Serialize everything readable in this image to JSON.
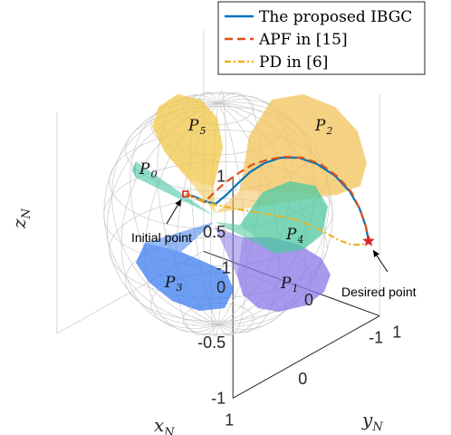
{
  "chart_data": {
    "type": "line",
    "view": "3d",
    "title": "",
    "xlabel": "x",
    "xlabel_subscript": "N",
    "ylabel": "y",
    "ylabel_subscript": "N",
    "zlabel": "z",
    "zlabel_subscript": "N",
    "x_ticks": [
      "1",
      "0",
      "-1"
    ],
    "y_ticks": [
      "-1",
      "0",
      "1"
    ],
    "z_ticks": [
      "1",
      "0.5",
      "0",
      "-0.5",
      "-1"
    ],
    "xlim": [
      -1,
      1
    ],
    "ylim": [
      -1,
      1
    ],
    "zlim": [
      -1,
      1
    ],
    "grid": true,
    "legend_position": "top-right",
    "series": [
      {
        "name": "The proposed IBGC",
        "color": "#0072BD",
        "dash": "solid"
      },
      {
        "name": "APF in [15]",
        "color": "#D95319",
        "dash": "dashed"
      },
      {
        "name": "PD in [6]",
        "color": "#EDB120",
        "dash": "dash-dot"
      }
    ],
    "cones": [
      {
        "label": "P",
        "index": "1",
        "color": "#8a78e6"
      },
      {
        "label": "P",
        "index": "2",
        "color": "#f2c35a"
      },
      {
        "label": "P",
        "index": "3",
        "color": "#3f7ff0"
      },
      {
        "label": "P",
        "index": "4",
        "color": "#4fc9a0"
      },
      {
        "label": "P",
        "index": "5",
        "color": "#f0c74a"
      },
      {
        "label": "P",
        "index": "0",
        "color": "#3dbf9f"
      }
    ],
    "annotations": [
      {
        "text": "Initial point"
      },
      {
        "text": "Desired point"
      }
    ]
  }
}
